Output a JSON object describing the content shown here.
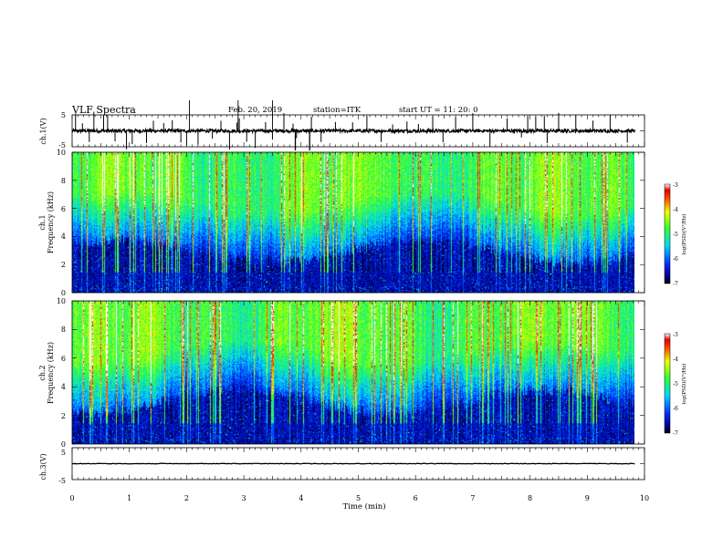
{
  "header": {
    "title": "VLF Spectra",
    "date": "Feb. 20, 2019",
    "station": "station=ITK",
    "start": "start  UT =   11: 20: 0"
  },
  "chart_data": [
    {
      "type": "line",
      "name": "ch1-waveform",
      "ylabel": "ch.1(V)",
      "yticks": [
        "5",
        "-5"
      ],
      "ylim": [
        -5,
        5
      ],
      "xlim": [
        0,
        10
      ],
      "baseline": 0,
      "spikes_min": [
        0.06,
        0.18,
        0.3,
        0.38,
        0.55,
        0.62,
        0.75,
        0.95,
        1.05,
        1.3,
        1.42,
        1.6,
        1.75,
        1.9,
        2.0,
        2.2,
        2.45,
        2.6,
        2.75,
        2.88,
        2.92,
        3.05,
        3.2,
        3.38,
        3.5,
        3.7,
        3.86,
        3.92,
        4.18,
        4.35,
        4.6,
        4.9,
        5.15,
        5.4,
        5.6,
        5.85,
        6.05,
        6.3,
        6.48,
        6.7,
        7.0,
        7.3,
        7.6,
        7.85,
        7.96,
        8.1,
        8.25,
        8.3,
        8.5,
        8.8,
        9.1,
        9.4,
        9.7
      ]
    },
    {
      "type": "heatmap",
      "name": "ch1-spectrogram",
      "ylabel_line1": "ch.1",
      "ylabel_line2": "Frequency (kHz)",
      "yticks": [
        "10",
        "8",
        "6",
        "4",
        "2",
        "0"
      ],
      "ylim": [
        0,
        10
      ],
      "xlim": [
        0,
        9.83
      ],
      "colorbar": {
        "label": "log(PSD)(V²/Hz)",
        "ticks": [
          "-3",
          "-4",
          "-5",
          "-6",
          "-7"
        ],
        "range": [
          -7,
          -3
        ]
      }
    },
    {
      "type": "heatmap",
      "name": "ch2-spectrogram",
      "ylabel_line1": "ch.2",
      "ylabel_line2": "Frequency (kHz)",
      "yticks": [
        "10",
        "8",
        "6",
        "4",
        "2",
        "0"
      ],
      "ylim": [
        0,
        10
      ],
      "xlim": [
        0,
        9.83
      ],
      "colorbar": {
        "label": "log(PSD)(V²/Hz)",
        "ticks": [
          "-3",
          "-4",
          "-5",
          "-6",
          "-7"
        ],
        "range": [
          -7,
          -3
        ]
      }
    },
    {
      "type": "line",
      "name": "ch3-waveform",
      "ylabel": "ch.3(V)",
      "yticks": [
        "5",
        "-5"
      ],
      "ylim": [
        -5,
        5
      ],
      "xlim": [
        0,
        10
      ],
      "baseline": 0
    }
  ],
  "xaxis": {
    "label": "Time  (min)",
    "ticks": [
      "0",
      "1",
      "2",
      "3",
      "4",
      "5",
      "6",
      "7",
      "8",
      "9",
      "10"
    ]
  }
}
